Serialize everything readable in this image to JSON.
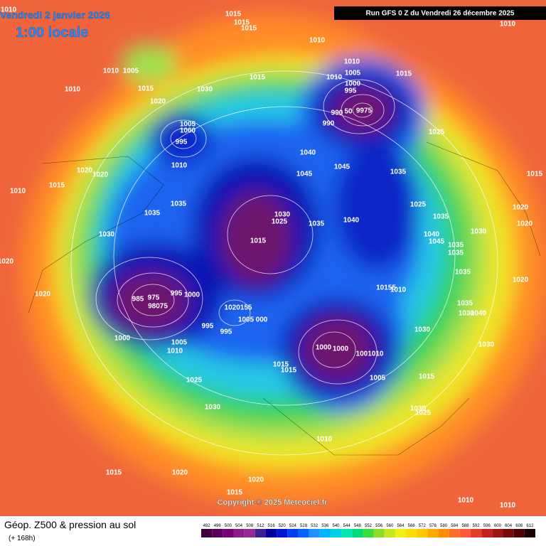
{
  "header": {
    "date": "Vendredi 2 janvier 2026",
    "time": "1:00 locale",
    "run": "Run GFS 0 Z du Vendredi 26 décembre 2025",
    "copyright": "Copyright © 2025 Meteociel.fr"
  },
  "footer": {
    "title": "Géop. Z500 & pression au sol",
    "lead": "(+ 168h)"
  },
  "colorbar": {
    "values": [
      492,
      496,
      500,
      504,
      508,
      512,
      516,
      520,
      524,
      528,
      532,
      536,
      540,
      544,
      548,
      552,
      556,
      560,
      564,
      568,
      572,
      576,
      580,
      584,
      588,
      592,
      596,
      600,
      604,
      608,
      612
    ],
    "colors": [
      "#3c003c",
      "#5a005a",
      "#7a007a",
      "#8c1e8c",
      "#962896",
      "#3c1e96",
      "#0000a0",
      "#0014d2",
      "#0040f0",
      "#0064ff",
      "#1e90ff",
      "#00b4ff",
      "#00d2e6",
      "#00e6b4",
      "#00dc78",
      "#3cdc3c",
      "#8cdc28",
      "#c8e61e",
      "#f0f014",
      "#ffdc00",
      "#ffc800",
      "#ffaa00",
      "#ff8c00",
      "#ff6e28",
      "#ff5a3c",
      "#e63c28",
      "#c81e1e",
      "#a01414",
      "#780a0a",
      "#500000",
      "#1e0000"
    ]
  },
  "isobar_labels": [
    "1010",
    "1015",
    "1015",
    "1015",
    "1010",
    "1010",
    "1010",
    "1005",
    "1010",
    "1015",
    "1030",
    "1015",
    "1010",
    "1005",
    "1010",
    "1015",
    "1000",
    "995",
    "990",
    "50",
    "9975",
    "990",
    "1020",
    "1005",
    "1000",
    "995",
    "1025",
    "1040",
    "1010",
    "1045",
    "1045",
    "1035",
    "1020",
    "1020",
    "1015",
    "1015",
    "1010",
    "1035",
    "1025",
    "1030",
    "1025",
    "1040",
    "1035",
    "1035",
    "1020",
    "1035",
    "1020",
    "1030",
    "1040",
    "1030",
    "1015",
    "1045",
    "1035",
    "1035",
    "1020",
    "1035",
    "1020",
    "10155",
    "1010",
    "1035",
    "975",
    "995",
    "1000",
    "985",
    "98075",
    "1020155",
    "1020",
    "1030",
    "1040",
    "1005",
    "000",
    "995",
    "995",
    "1030",
    "1000",
    "1005",
    "1010",
    "1000",
    "1000",
    "1001010",
    "1030",
    "1015",
    "1015",
    "1005",
    "1015",
    "1025",
    "1030",
    "1030",
    "1025",
    "1010",
    "1015",
    "1020",
    "1020",
    "1015",
    "1010",
    "1010"
  ]
}
